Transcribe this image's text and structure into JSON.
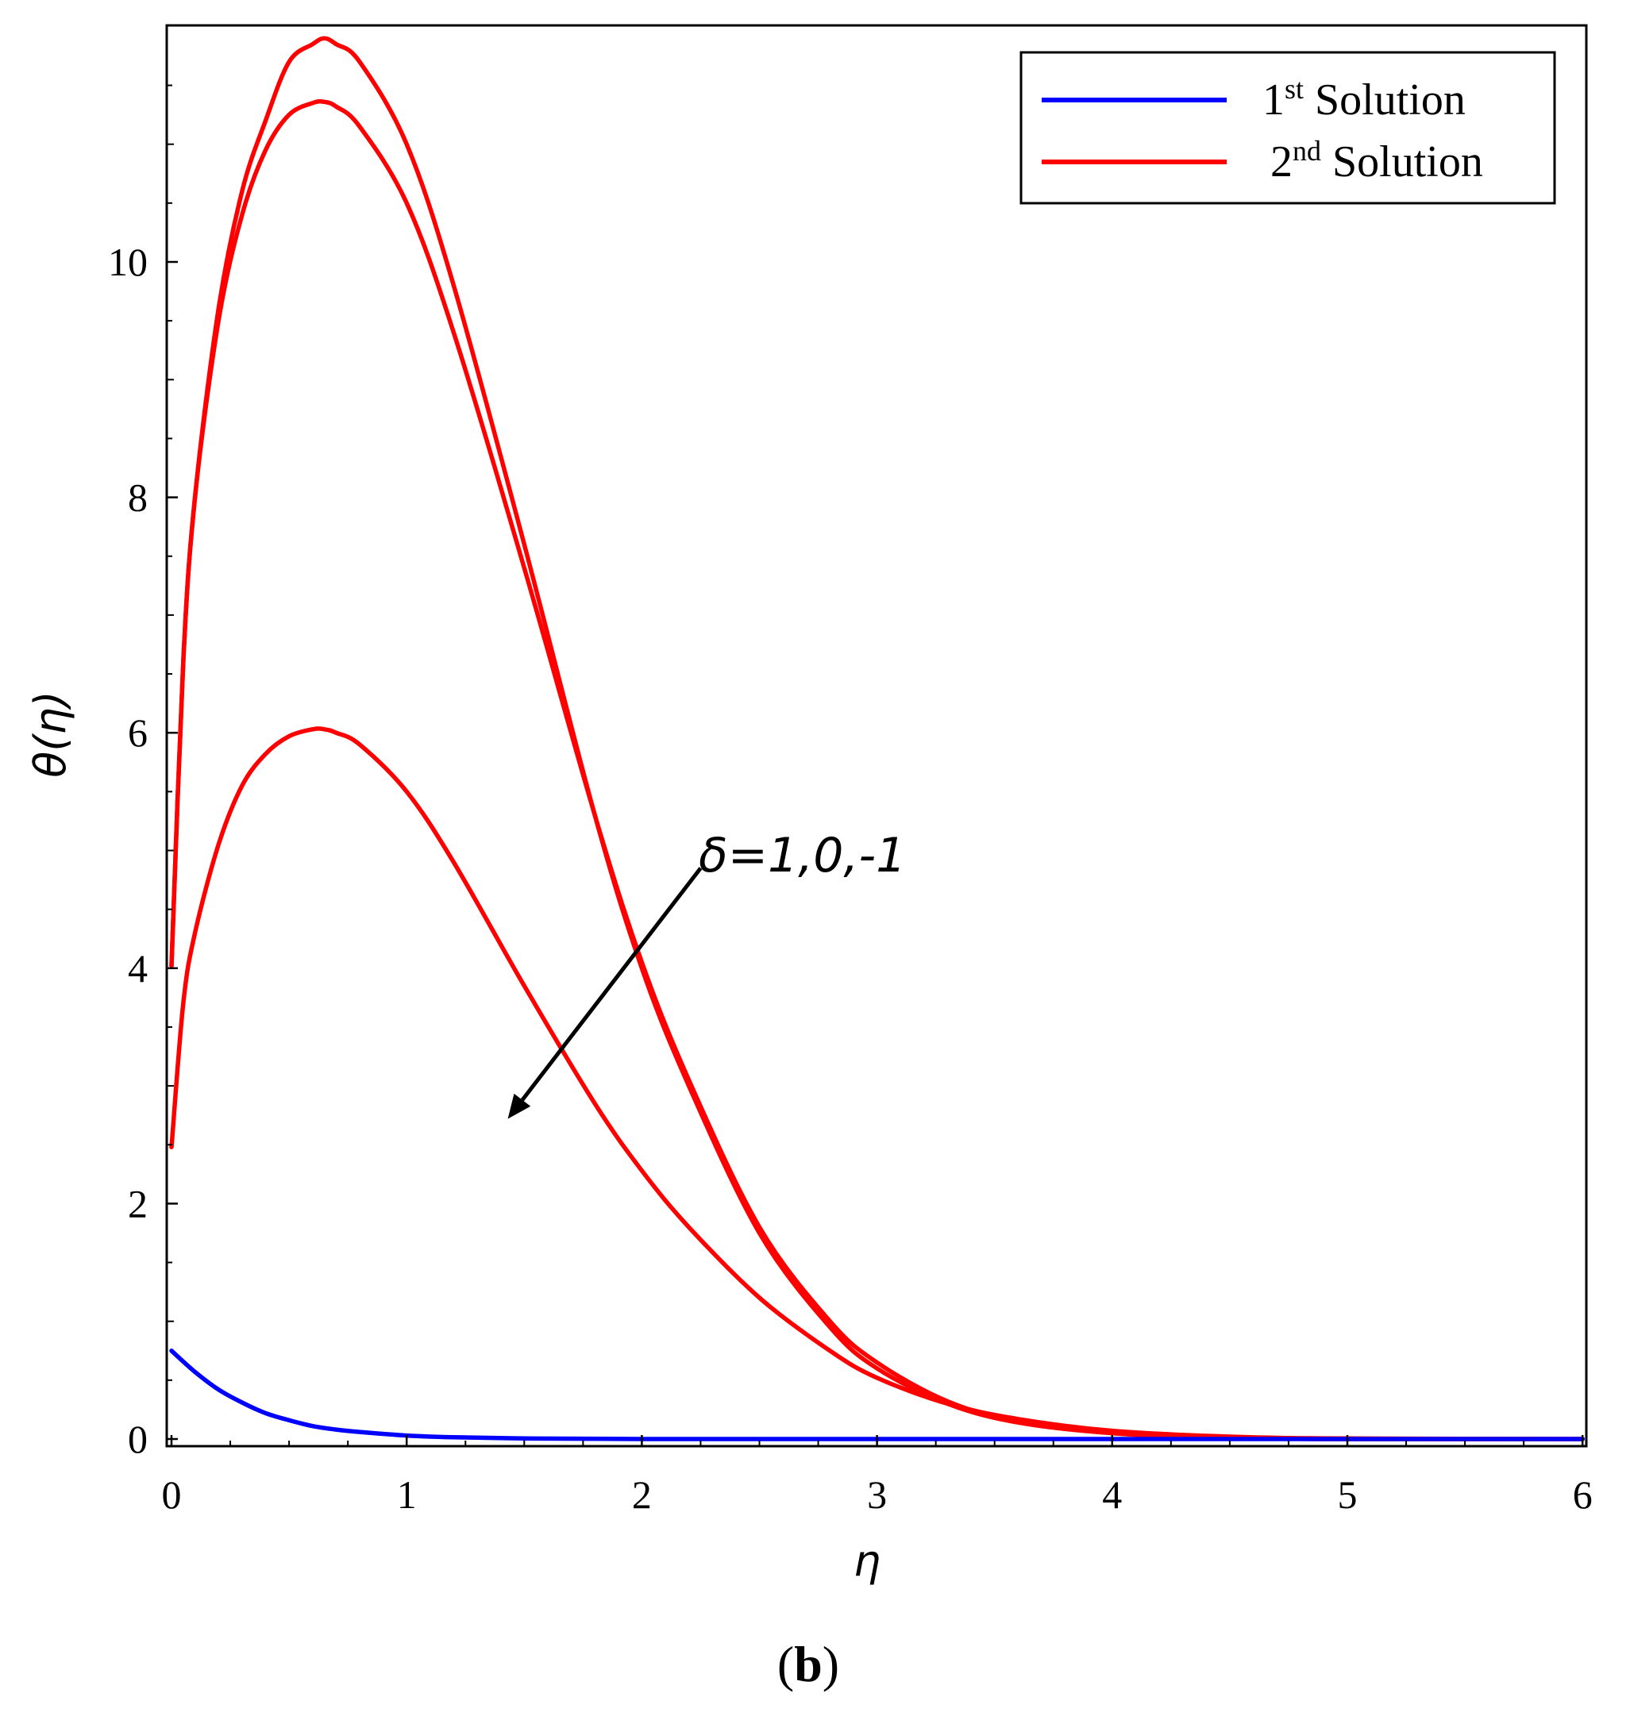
{
  "chart_data": {
    "type": "line",
    "xlabel": "η",
    "ylabel": "θ(η)",
    "xlim": [
      0,
      6
    ],
    "ylim": [
      0,
      12
    ],
    "xticks": [
      0,
      1,
      2,
      3,
      4,
      5,
      6
    ],
    "yticks": [
      0,
      2,
      4,
      6,
      8,
      10
    ],
    "grid": false,
    "legend": {
      "placement": "top-right",
      "entries": [
        {
          "base": "1",
          "sup": "st",
          "rest": " Solution",
          "color": "#0000ff"
        },
        {
          "base": "2",
          "sup": "nd",
          "rest": " Solution",
          "color": "#ff0000"
        }
      ]
    },
    "annotation": {
      "text": "δ=1,0,-1",
      "arrow_from": [
        2.25,
        4.85
      ],
      "arrow_to": [
        1.43,
        2.72
      ]
    },
    "series": [
      {
        "name": "1st Solution",
        "color": "#0000ff",
        "x": [
          0,
          0.1,
          0.2,
          0.3,
          0.4,
          0.5,
          0.6,
          0.7,
          0.8,
          1.0,
          1.2,
          1.5,
          2.0,
          3.0,
          4.0,
          5.0,
          6.0
        ],
        "y": [
          0.75,
          0.57,
          0.42,
          0.31,
          0.22,
          0.16,
          0.11,
          0.08,
          0.06,
          0.03,
          0.015,
          0.005,
          0.0,
          0.0,
          0.0,
          0.0,
          0.0
        ]
      },
      {
        "name": "2nd Solution (δ=1)",
        "color": "#ff0000",
        "x": [
          0,
          0.05,
          0.1,
          0.2,
          0.3,
          0.4,
          0.5,
          0.6,
          0.65,
          0.7,
          0.8,
          1.0,
          1.2,
          1.5,
          1.8,
          2.0,
          2.2,
          2.5,
          2.8,
          3.0,
          3.3,
          3.6,
          4.0,
          4.5,
          5.0,
          6.0
        ],
        "y": [
          4.02,
          6.6,
          8.0,
          9.6,
          10.6,
          11.2,
          11.7,
          11.85,
          11.9,
          11.85,
          11.7,
          11.0,
          9.8,
          7.6,
          5.3,
          4.0,
          3.0,
          1.75,
          0.95,
          0.6,
          0.3,
          0.14,
          0.05,
          0.01,
          0.0,
          0.0
        ]
      },
      {
        "name": "2nd Solution (δ=0)",
        "color": "#ff0000",
        "x": [
          0,
          0.05,
          0.1,
          0.2,
          0.3,
          0.4,
          0.5,
          0.6,
          0.65,
          0.7,
          0.8,
          1.0,
          1.2,
          1.5,
          1.8,
          2.0,
          2.2,
          2.5,
          2.8,
          3.0,
          3.3,
          3.6,
          4.0,
          4.5,
          5.0,
          6.0
        ],
        "y": [
          4.02,
          6.6,
          8.0,
          9.5,
          10.4,
          10.95,
          11.25,
          11.35,
          11.36,
          11.32,
          11.15,
          10.5,
          9.4,
          7.4,
          5.3,
          4.05,
          3.05,
          1.8,
          1.0,
          0.65,
          0.32,
          0.15,
          0.05,
          0.01,
          0.0,
          0.0
        ]
      },
      {
        "name": "2nd Solution (δ=-1)",
        "color": "#ff0000",
        "x": [
          0,
          0.05,
          0.1,
          0.2,
          0.3,
          0.4,
          0.5,
          0.6,
          0.65,
          0.7,
          0.8,
          1.0,
          1.2,
          1.5,
          1.8,
          2.0,
          2.2,
          2.5,
          2.8,
          3.0,
          3.3,
          3.6,
          4.0,
          4.5,
          5.0,
          6.0
        ],
        "y": [
          2.48,
          3.7,
          4.3,
          5.05,
          5.55,
          5.82,
          5.97,
          6.03,
          6.03,
          6.0,
          5.9,
          5.5,
          4.9,
          3.85,
          2.85,
          2.28,
          1.8,
          1.2,
          0.75,
          0.52,
          0.3,
          0.17,
          0.07,
          0.02,
          0.005,
          0.0
        ]
      }
    ]
  },
  "caption": {
    "open": "(",
    "letter": "b",
    "close": ")"
  }
}
